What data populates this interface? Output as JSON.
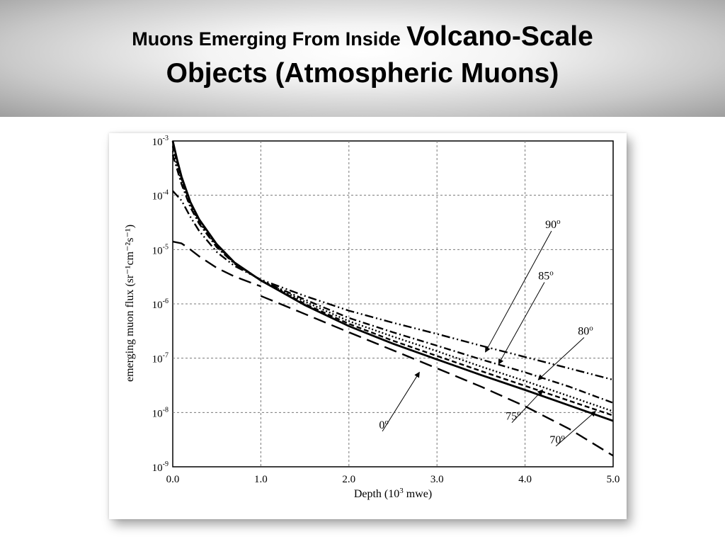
{
  "header": {
    "title_line1_part1": "Muons Emerging From Inside",
    "title_line1_part2": "Volcano-Scale",
    "title_line2": "Objects (Atmospheric Muons)"
  },
  "chart_data": {
    "type": "line",
    "xlabel_main": "Depth (10",
    "xlabel_sup": "3",
    "xlabel_end": " mwe)",
    "ylabel": "emerging muon flux (sr⁻¹cm⁻²s⁻¹)",
    "xlim": [
      0,
      5
    ],
    "ylim": [
      1e-09,
      0.001
    ],
    "yscale": "log",
    "grid": true,
    "xticks": [
      "0.0",
      "1.0",
      "2.0",
      "3.0",
      "4.0",
      "5.0"
    ],
    "yticks": [
      {
        "base": "10",
        "exp": "-3"
      },
      {
        "base": "10",
        "exp": "-4"
      },
      {
        "base": "10",
        "exp": "-5"
      },
      {
        "base": "10",
        "exp": "-6"
      },
      {
        "base": "10",
        "exp": "-7"
      },
      {
        "base": "10",
        "exp": "-8"
      },
      {
        "base": "10",
        "exp": "-9"
      }
    ],
    "series": [
      {
        "name": "0°",
        "style": "longdash",
        "x": [
          0.0,
          0.1,
          0.2,
          0.3,
          0.5,
          0.7,
          1.0
        ],
        "y": [
          1.4e-05,
          1.3e-05,
          1e-05,
          7.5e-06,
          4.6e-06,
          3.2e-06,
          2.1e-06
        ]
      },
      {
        "name": "0°",
        "style": "longdash",
        "x": [
          1.0,
          1.5,
          2.0,
          2.5,
          3.0,
          3.5,
          4.0,
          4.5,
          5.0
        ],
        "y": [
          1.4e-06,
          6.5e-07,
          3e-07,
          1.4e-07,
          6.5e-08,
          3e-08,
          1.3e-08,
          5e-09,
          1.6e-09
        ]
      },
      {
        "name": "90°",
        "style": "dashdotdot",
        "x": [
          0.0,
          0.1,
          0.2,
          0.3,
          0.5,
          0.7,
          1.0,
          1.5,
          2.0,
          2.5,
          3.0,
          3.5,
          4.0,
          4.5,
          5.0
        ],
        "y": [
          0.00012,
          8e-05,
          4e-05,
          2.2e-05,
          9e-06,
          5e-06,
          2.8e-06,
          1.4e-06,
          7.5e-07,
          4.5e-07,
          2.8e-07,
          1.7e-07,
          1.05e-07,
          6.5e-08,
          4e-08
        ]
      },
      {
        "name": "85°",
        "style": "dashdot",
        "x": [
          0.0,
          0.05,
          0.1,
          0.2,
          0.3,
          0.5,
          0.7,
          1.0,
          1.5,
          2.0,
          2.5,
          3.0,
          3.5,
          4.0,
          4.5,
          5.0
        ],
        "y": [
          0.00055,
          0.0003,
          0.00016,
          6e-05,
          3e-05,
          1.1e-05,
          5.5e-06,
          2.7e-06,
          1.2e-06,
          5.5e-07,
          3e-07,
          1.7e-07,
          9.5e-08,
          5.5e-08,
          3e-08,
          1.5e-08
        ]
      },
      {
        "name": "80°",
        "style": "dotted",
        "x": [
          0.0,
          0.05,
          0.1,
          0.2,
          0.3,
          0.5,
          0.7,
          1.0,
          1.5,
          2.0,
          2.5,
          3.0,
          3.5,
          4.0,
          4.5,
          5.0
        ],
        "y": [
          0.00065,
          0.00035,
          0.00018,
          6.5e-05,
          3.2e-05,
          1.15e-05,
          5.6e-06,
          2.7e-06,
          1.1e-06,
          4.8e-07,
          2.5e-07,
          1.35e-07,
          7e-08,
          3.8e-08,
          2e-08,
          1.05e-08
        ]
      },
      {
        "name": "75°",
        "style": "dashed",
        "x": [
          0.0,
          0.05,
          0.1,
          0.2,
          0.3,
          0.5,
          0.7,
          1.0,
          1.5,
          2.0,
          2.5,
          3.0,
          3.5,
          4.0,
          4.5,
          5.0
        ],
        "y": [
          0.0008,
          0.0004,
          0.0002,
          7e-05,
          3.4e-05,
          1.2e-05,
          5.7e-06,
          2.7e-06,
          1e-06,
          4.3e-07,
          2.1e-07,
          1.1e-07,
          5.8e-08,
          3.1e-08,
          1.65e-08,
          8.8e-09
        ]
      },
      {
        "name": "70°",
        "style": "solid",
        "x": [
          0.0,
          0.05,
          0.1,
          0.2,
          0.3,
          0.5,
          0.7,
          1.0,
          1.5,
          2.0,
          2.5,
          3.0,
          3.5,
          4.0,
          4.5,
          5.0
        ],
        "y": [
          0.001,
          0.00045,
          0.00022,
          7.5e-05,
          3.6e-05,
          1.25e-05,
          5.8e-06,
          2.7e-06,
          9.5e-07,
          3.9e-07,
          1.85e-07,
          9.5e-08,
          4.9e-08,
          2.6e-08,
          1.35e-08,
          7e-09
        ]
      }
    ],
    "annotations": [
      {
        "label": "90",
        "deg": "o",
        "x": 4.3,
        "y": 2.2e-05,
        "tx": 3.55,
        "ty": 1.3e-07
      },
      {
        "label": "85",
        "deg": "o",
        "x": 4.22,
        "y": 2.5e-06,
        "tx": 3.7,
        "ty": 7.8e-08
      },
      {
        "label": "80",
        "deg": "o",
        "x": 4.67,
        "y": 2.4e-07,
        "tx": 4.15,
        "ty": 4e-08
      },
      {
        "label": "75",
        "deg": "o",
        "x": 3.85,
        "y": 6.5e-09,
        "tx": 4.2,
        "ty": 2.6e-08
      },
      {
        "label": "70",
        "deg": "o",
        "x": 4.35,
        "y": 2.4e-09,
        "tx": 4.8,
        "ty": 1.05e-08
      },
      {
        "label": "0",
        "deg": "o",
        "x": 2.38,
        "y": 4.5e-09,
        "tx": 2.8,
        "ty": 5.5e-08
      }
    ]
  }
}
